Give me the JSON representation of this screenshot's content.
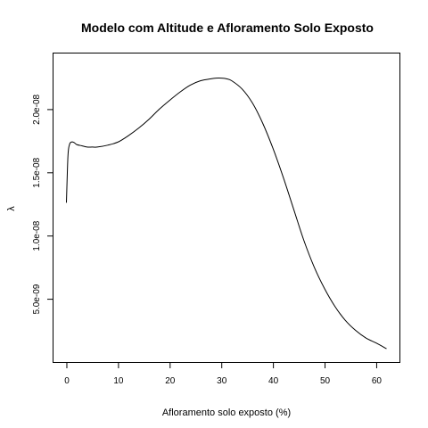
{
  "chart_data": {
    "type": "line",
    "title": "Modelo com Altitude e Afloramento Solo Exposto",
    "xlabel": "Afloramento solo exposto (%)",
    "ylabel": "λ",
    "xlim": [
      -2.5,
      64.5
    ],
    "ylim": [
      0,
      2.44e-08
    ],
    "x_ticks": [
      0,
      10,
      20,
      30,
      40,
      50,
      60
    ],
    "y_ticks": [
      5e-09,
      1e-08,
      1.5e-08,
      2e-08
    ],
    "y_tick_labels": [
      "5.0e-09",
      "1.0e-08",
      "1.5e-08",
      "2.0e-08"
    ],
    "grid": false,
    "series": [
      {
        "x": [
          0,
          0.3,
          0.6,
          1,
          1.5,
          2,
          3,
          4,
          5,
          6,
          8,
          10,
          12,
          14,
          16,
          18,
          20,
          22,
          24,
          26,
          28,
          29,
          30,
          31,
          32,
          34,
          36,
          38,
          40,
          42,
          44,
          46,
          48,
          50,
          52,
          54,
          56,
          58,
          60,
          62
        ],
        "y": [
          1.26e-08,
          1.63e-08,
          1.72e-08,
          1.74e-08,
          1.735e-08,
          1.72e-08,
          1.71e-08,
          1.7e-08,
          1.7e-08,
          1.7e-08,
          1.715e-08,
          1.74e-08,
          1.79e-08,
          1.85e-08,
          1.92e-08,
          2e-08,
          2.07e-08,
          2.135e-08,
          2.19e-08,
          2.225e-08,
          2.24e-08,
          2.245e-08,
          2.245e-08,
          2.24e-08,
          2.225e-08,
          2.16e-08,
          2.05e-08,
          1.89e-08,
          1.69e-08,
          1.46e-08,
          1.21e-08,
          9.6e-09,
          7.5e-09,
          5.8e-09,
          4.4e-09,
          3.3e-09,
          2.5e-09,
          1.9e-09,
          1.5e-09,
          1.05e-09
        ]
      }
    ]
  }
}
